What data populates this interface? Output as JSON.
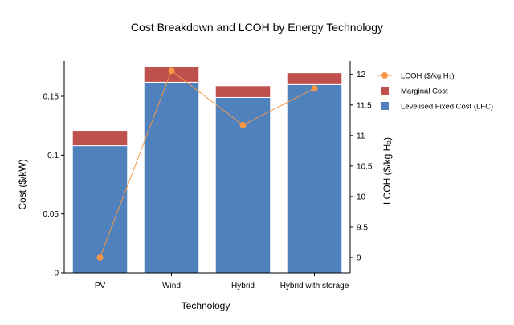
{
  "chart_data": {
    "type": "bar",
    "title": "Cost Breakdown and LCOH by Energy Technology",
    "xlabel": "Technology",
    "ylabel": "Cost ($/kW)",
    "y2label": "LCOH ($/kg H₂)",
    "categories": [
      "PV",
      "Wind",
      "Hybrid",
      "Hybrid with storage"
    ],
    "stacked": true,
    "series": [
      {
        "name": "Levelised Fixed Cost (LFC)",
        "axis": "left",
        "kind": "bar",
        "color": "#4f81bd",
        "values": [
          0.108,
          0.162,
          0.149,
          0.16
        ]
      },
      {
        "name": "Marginal Cost",
        "axis": "left",
        "kind": "bar",
        "color": "#c0504d",
        "values": [
          0.013,
          0.013,
          0.01,
          0.01
        ]
      },
      {
        "name": "LCOH ($/kg H₂)",
        "axis": "right",
        "kind": "line",
        "color": "#f79646",
        "values": [
          9.0,
          12.06,
          11.17,
          11.77
        ]
      }
    ],
    "ylim": [
      0,
      0.18
    ],
    "y2lim": [
      8.75,
      12.22
    ],
    "yticks": [
      0,
      0.05,
      0.1,
      0.15
    ],
    "ytick_labels": [
      "0",
      "0.05",
      "0.1",
      "0.15"
    ],
    "y2ticks": [
      9,
      9.5,
      10,
      10.5,
      11,
      11.5,
      12
    ],
    "y2tick_labels": [
      "9",
      "9.5",
      "10",
      "10.5",
      "11",
      "11.5",
      "12"
    ],
    "legend": [
      "LCOH ($/kg H₂)",
      "Marginal Cost",
      "Levelised Fixed Cost (LFC)"
    ],
    "legend_position": "outside-right-top",
    "grid": false
  }
}
